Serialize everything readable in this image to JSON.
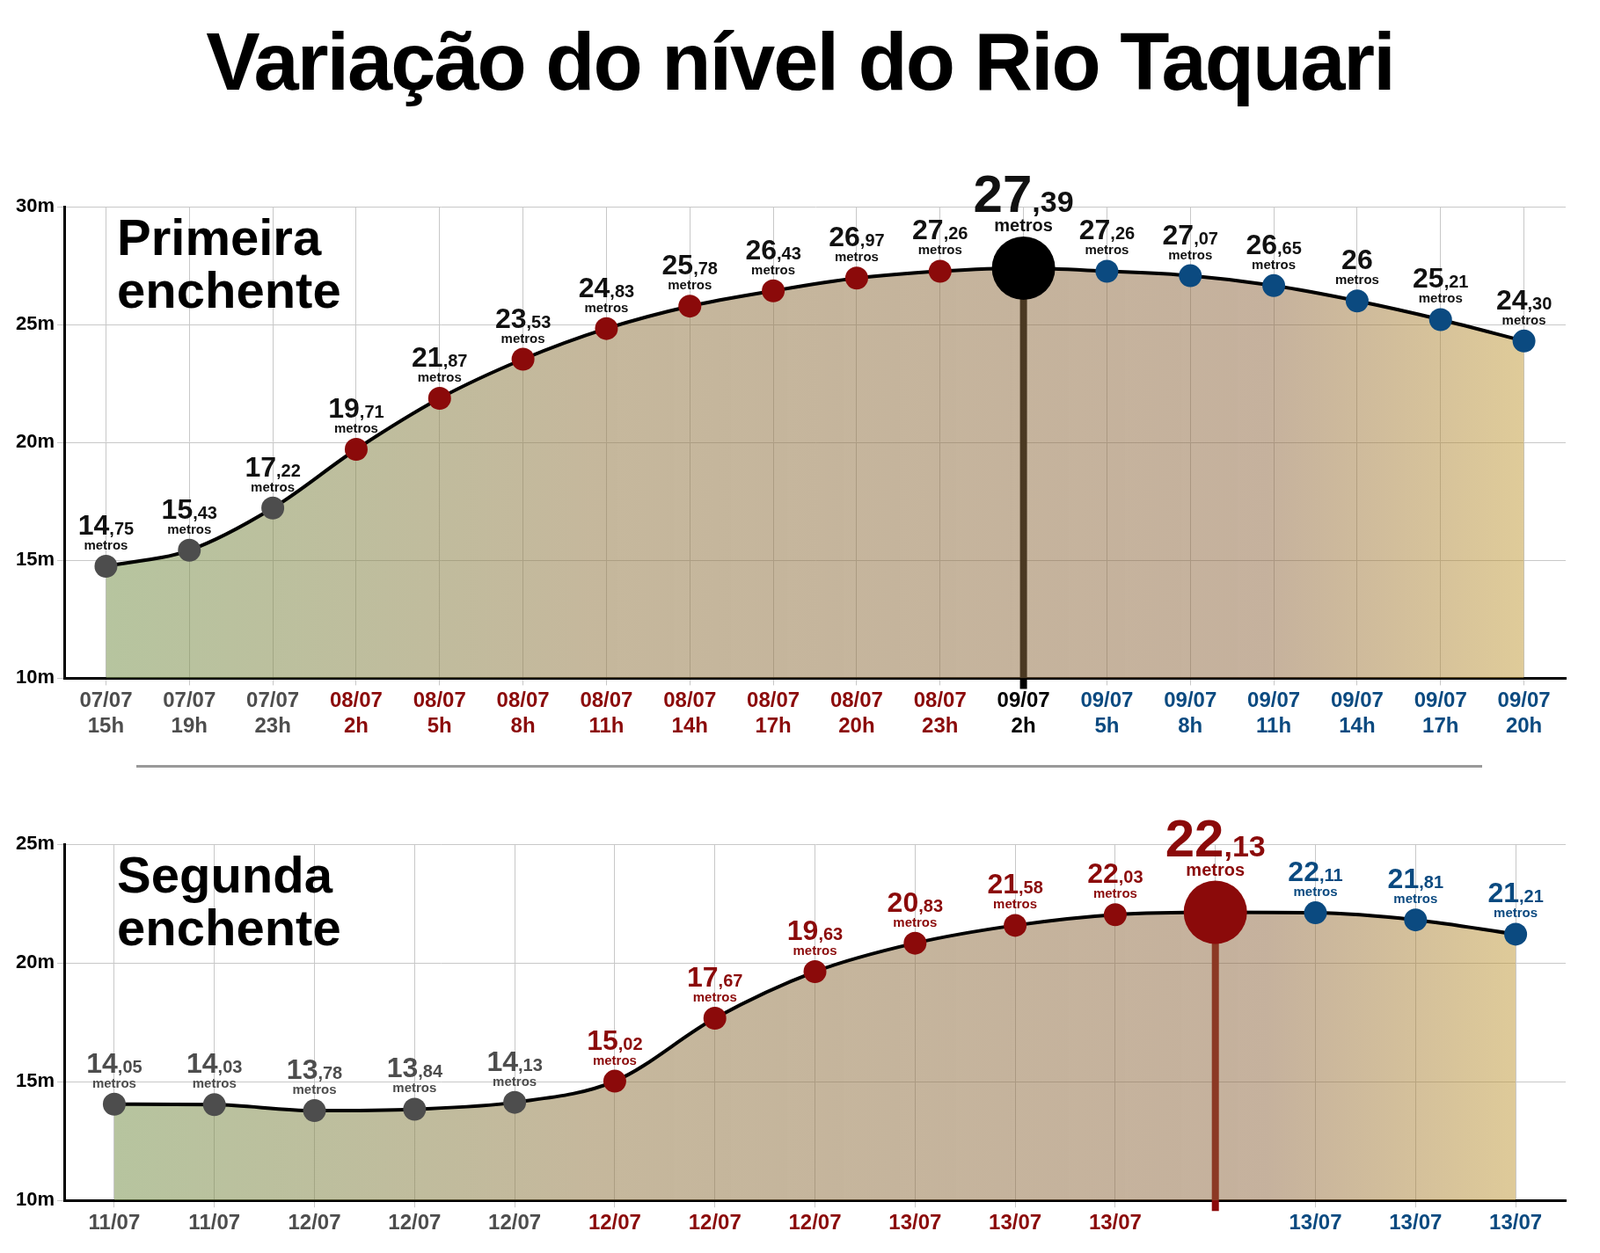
{
  "title": "Variação do nível do Rio Taquari",
  "chart_data": [
    {
      "type": "line",
      "subtitle": "Primeira enchente",
      "categories": [
        "07/07 15h",
        "07/07 19h",
        "07/07 23h",
        "08/07 2h",
        "08/07 5h",
        "08/07 8h",
        "08/07 11h",
        "08/07 14h",
        "08/07 17h",
        "08/07 20h",
        "08/07 23h",
        "09/07 2h",
        "09/07 5h",
        "09/07 8h",
        "09/07 11h",
        "09/07 14h",
        "09/07 17h",
        "09/07 20h"
      ],
      "values": [
        14.75,
        15.43,
        17.22,
        19.71,
        21.87,
        23.53,
        24.83,
        25.78,
        26.43,
        26.97,
        27.26,
        27.39,
        27.26,
        27.07,
        26.65,
        26,
        25.21,
        24.3
      ],
      "value_labels": [
        "14,75",
        "15,43",
        "17,22",
        "19,71",
        "21,87",
        "23,53",
        "24,83",
        "25,78",
        "26,43",
        "26,97",
        "27,26",
        "27,39",
        "27,26",
        "27,07",
        "26,65",
        "26",
        "25,21",
        "24,30"
      ],
      "value_unit": "metros",
      "color": "#000000",
      "colors": [
        "#4d4d4d",
        "#4d4d4d",
        "#4d4d4d",
        "#8b0a0a",
        "#8b0a0a",
        "#8b0a0a",
        "#8b0a0a",
        "#8b0a0a",
        "#8b0a0a",
        "#8b0a0a",
        "#8b0a0a",
        "#000000",
        "#0b4a80",
        "#0b4a80",
        "#0b4a80",
        "#0b4a80",
        "#0b4a80",
        "#0b4a80"
      ],
      "marker": "circle",
      "ylim": [
        10,
        30
      ],
      "yticks": [
        {
          "value": 10,
          "label": "10m"
        },
        {
          "value": 15,
          "label": "15m"
        },
        {
          "value": 20,
          "label": "20m"
        },
        {
          "value": 25,
          "label": "25m"
        },
        {
          "value": 30,
          "label": "30m"
        }
      ],
      "grid": true,
      "data_labels": true
    },
    {
      "type": "line",
      "subtitle": "Segunda enchente",
      "categories": [
        "11/07",
        "11/07",
        "12/07",
        "12/07",
        "12/07",
        "12/07",
        "12/07",
        "12/07",
        "13/07",
        "13/07",
        "13/07",
        null,
        "13/07",
        "13/07",
        "13/07"
      ],
      "values": [
        14.05,
        14.03,
        13.78,
        13.84,
        14.13,
        15.02,
        17.67,
        19.63,
        20.83,
        21.58,
        22.03,
        22.13,
        22.11,
        21.81,
        21.21
      ],
      "value_labels": [
        "14,05",
        "14,03",
        "13,78",
        "13,84",
        "14,13",
        "15,02",
        "17,67",
        "19,63",
        "20,83",
        "21,58",
        "22,03",
        "22,13",
        "22,11",
        "21,81",
        "21,21"
      ],
      "value_unit": "metros",
      "color": "#000000",
      "colors": [
        "#4d4d4d",
        "#4d4d4d",
        "#4d4d4d",
        "#4d4d4d",
        "#4d4d4d",
        "#8b0a0a",
        "#8b0a0a",
        "#8b0a0a",
        "#8b0a0a",
        "#8b0a0a",
        "#8b0a0a",
        "#8b0a0a",
        "#0b4a80",
        "#0b4a80",
        "#0b4a80"
      ],
      "marker": "circle",
      "ylim": [
        10,
        25
      ],
      "yticks": [
        {
          "value": 10,
          "label": "10m"
        },
        {
          "value": 15,
          "label": "15m"
        },
        {
          "value": 20,
          "label": "20m"
        },
        {
          "value": 25,
          "label": "25m"
        }
      ],
      "grid": true,
      "data_labels": true
    }
  ]
}
